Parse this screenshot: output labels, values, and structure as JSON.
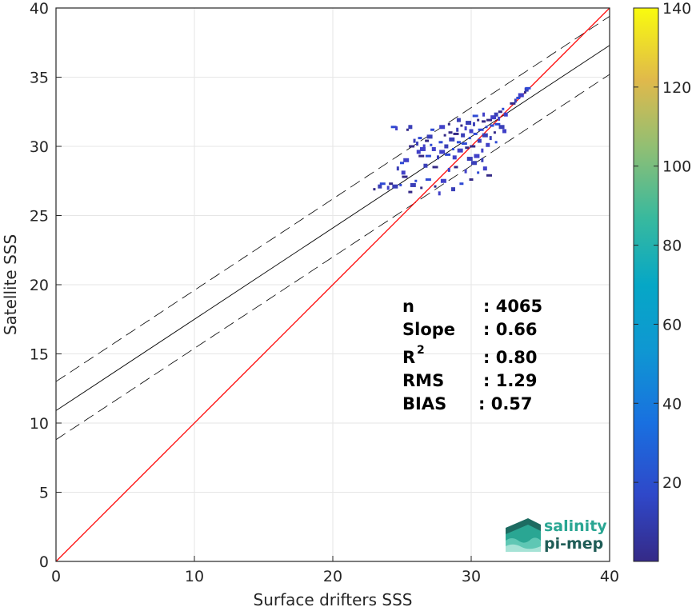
{
  "chart_data": {
    "type": "heatmap",
    "xlabel": "Surface drifters SSS",
    "ylabel": "Satellite SSS",
    "xlim": [
      0,
      40
    ],
    "ylim": [
      0,
      40
    ],
    "xticks": [
      "0",
      "10",
      "20",
      "30",
      "40"
    ],
    "yticks": [
      "0",
      "5",
      "10",
      "15",
      "20",
      "25",
      "30",
      "35",
      "40"
    ],
    "grid": true,
    "reference_line": {
      "name": "1:1",
      "slope": 1,
      "intercept": 0,
      "color": "#ff0000"
    },
    "fit_line": {
      "slope": 0.66,
      "intercept": 10.9,
      "color": "#000000"
    },
    "fit_band_offset": 2.1,
    "colorbar": {
      "min": 0,
      "max": 140,
      "ticks": [
        "20",
        "40",
        "60",
        "80",
        "100",
        "120",
        "140"
      ],
      "colormap": "parula"
    },
    "density_points": [
      [
        23.0,
        26.9
      ],
      [
        23.4,
        27.1
      ],
      [
        23.6,
        27.3
      ],
      [
        24.0,
        27.0
      ],
      [
        24.2,
        27.3
      ],
      [
        24.5,
        27.1
      ],
      [
        24.9,
        27.2
      ],
      [
        25.1,
        28.1
      ],
      [
        25.2,
        27.8
      ],
      [
        24.7,
        28.4
      ],
      [
        25.0,
        28.8
      ],
      [
        25.3,
        29.0
      ],
      [
        25.4,
        31.2
      ],
      [
        25.6,
        31.4
      ],
      [
        24.4,
        31.4
      ],
      [
        24.6,
        31.3
      ],
      [
        25.6,
        26.7
      ],
      [
        25.8,
        27.2
      ],
      [
        26.0,
        27.5
      ],
      [
        26.2,
        29.6
      ],
      [
        26.4,
        29.3
      ],
      [
        26.1,
        30.2
      ],
      [
        26.3,
        30.6
      ],
      [
        26.5,
        29.8
      ],
      [
        26.4,
        27.0
      ],
      [
        26.7,
        28.6
      ],
      [
        26.9,
        29.3
      ],
      [
        26.6,
        30.0
      ],
      [
        26.8,
        30.4
      ],
      [
        27.0,
        30.7
      ],
      [
        27.1,
        30.1
      ],
      [
        27.3,
        29.8
      ],
      [
        27.4,
        28.5
      ],
      [
        27.6,
        29.2
      ],
      [
        27.8,
        30.3
      ],
      [
        27.9,
        29.6
      ],
      [
        28.1,
        30.8
      ],
      [
        28.2,
        30.0
      ],
      [
        28.3,
        29.4
      ],
      [
        28.4,
        28.3
      ],
      [
        28.5,
        31.0
      ],
      [
        28.6,
        30.5
      ],
      [
        28.7,
        29.8
      ],
      [
        28.8,
        29.2
      ],
      [
        28.9,
        30.9
      ],
      [
        29.0,
        31.2
      ],
      [
        29.1,
        30.3
      ],
      [
        29.2,
        29.7
      ],
      [
        29.3,
        31.5
      ],
      [
        29.4,
        30.8
      ],
      [
        29.5,
        30.2
      ],
      [
        29.6,
        31.3
      ],
      [
        29.7,
        29.9
      ],
      [
        29.8,
        31.7
      ],
      [
        29.9,
        30.6
      ],
      [
        30.0,
        31.1
      ],
      [
        30.1,
        30.0
      ],
      [
        30.2,
        31.6
      ],
      [
        30.3,
        30.9
      ],
      [
        30.4,
        29.3
      ],
      [
        30.5,
        31.9
      ],
      [
        30.6,
        30.4
      ],
      [
        30.7,
        31.2
      ],
      [
        30.8,
        29.7
      ],
      [
        30.9,
        31.8
      ],
      [
        31.0,
        30.8
      ],
      [
        31.1,
        31.4
      ],
      [
        31.2,
        30.1
      ],
      [
        31.3,
        31.9
      ],
      [
        31.4,
        30.6
      ],
      [
        31.5,
        31.5
      ],
      [
        31.6,
        32.1
      ],
      [
        31.7,
        31.0
      ],
      [
        31.8,
        32.3
      ],
      [
        31.9,
        31.6
      ],
      [
        32.0,
        32.0
      ],
      [
        32.1,
        32.5
      ],
      [
        32.2,
        31.4
      ],
      [
        32.3,
        32.7
      ],
      [
        32.5,
        32.3
      ],
      [
        33.0,
        33.1
      ],
      [
        33.2,
        33.3
      ],
      [
        33.4,
        33.5
      ],
      [
        33.6,
        33.7
      ],
      [
        33.9,
        33.9
      ],
      [
        34.0,
        34.1
      ],
      [
        34.1,
        34.2
      ],
      [
        29.6,
        28.2
      ],
      [
        30.0,
        27.6
      ],
      [
        30.2,
        28.8
      ],
      [
        30.5,
        28.1
      ],
      [
        31.0,
        28.4
      ],
      [
        31.3,
        27.9
      ],
      [
        30.8,
        29.0
      ],
      [
        29.3,
        27.3
      ],
      [
        28.0,
        27.5
      ],
      [
        27.4,
        27.1
      ],
      [
        28.7,
        26.9
      ],
      [
        26.9,
        27.6
      ],
      [
        27.7,
        26.6
      ],
      [
        28.9,
        28.5
      ],
      [
        29.9,
        29.1
      ],
      [
        31.8,
        30.3
      ],
      [
        32.4,
        31.1
      ],
      [
        25.7,
        30.0
      ],
      [
        25.9,
        30.4
      ],
      [
        27.2,
        31.2
      ],
      [
        27.9,
        31.4
      ],
      [
        28.4,
        31.6
      ],
      [
        29.1,
        31.9
      ],
      [
        30.3,
        32.2
      ],
      [
        30.9,
        32.3
      ]
    ]
  },
  "stats": {
    "rows": [
      {
        "label": "n",
        "value": ": 4065"
      },
      {
        "label": "Slope",
        "value": ": 0.66"
      },
      {
        "label": "R",
        "sup": "2",
        "value": ": 0.80"
      },
      {
        "label": "RMS",
        "value": ": 1.29"
      },
      {
        "label": "BIAS",
        "value": ": 0.57"
      }
    ]
  },
  "logo": {
    "line1": "salinity",
    "line2": "pi-mep",
    "color1": "#2aa693",
    "color2": "#1f5c56"
  }
}
